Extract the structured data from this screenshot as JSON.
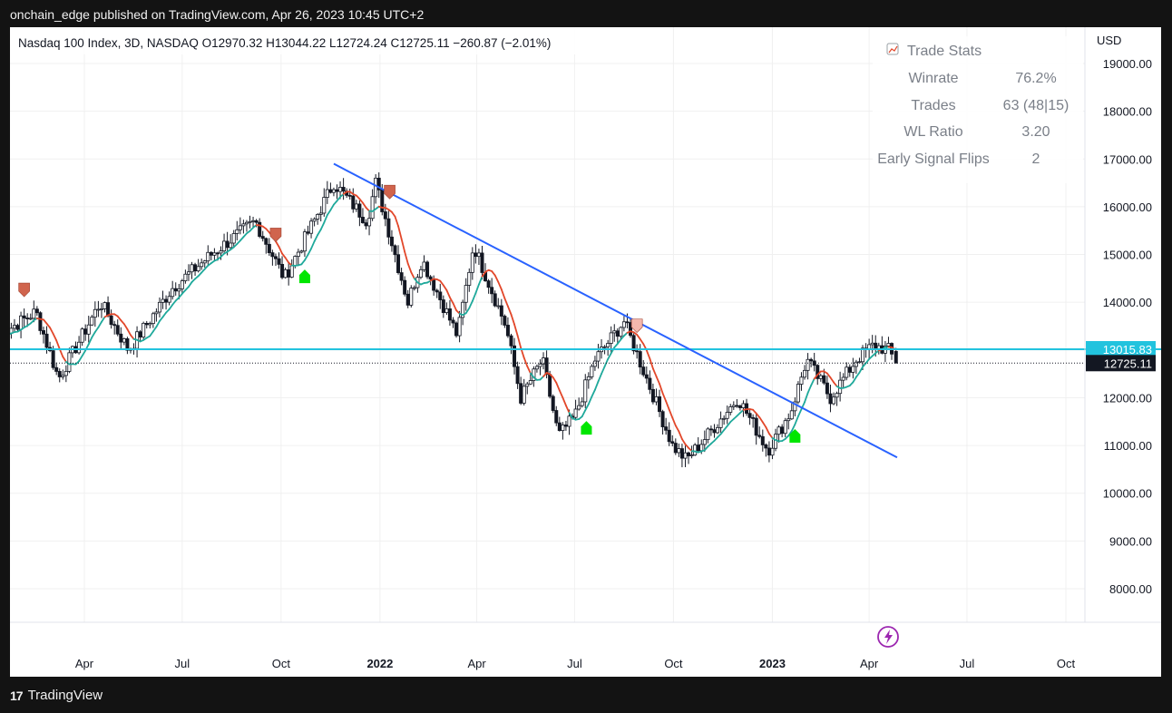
{
  "caption": "onchain_edge published on TradingView.com, Apr 26, 2023 10:45 UTC+2",
  "branding": {
    "logo_icon": "tradingview-logo-icon",
    "logo_text": "TradingView"
  },
  "chart_data": {
    "type": "candlestick",
    "legend_text": "Nasdaq 100 Index, 3D, NASDAQ  O12970.32  H13044.22  L12724.24  C12725.11  −260.87 (−2.01%)",
    "currency_label": "USD",
    "y_ticks": [
      "19000.00",
      "18000.00",
      "17000.00",
      "16000.00",
      "15000.00",
      "14000.00",
      "12000.00",
      "11000.00",
      "10000.00",
      "9000.00",
      "8000.00"
    ],
    "x_ticks": [
      {
        "label": "Apr",
        "date": "2021-04-01",
        "bold": false
      },
      {
        "label": "Jul",
        "date": "2021-07-01",
        "bold": false
      },
      {
        "label": "Oct",
        "date": "2021-10-01",
        "bold": false
      },
      {
        "label": "2022",
        "date": "2022-01-01",
        "bold": true
      },
      {
        "label": "Apr",
        "date": "2022-04-01",
        "bold": false
      },
      {
        "label": "Jul",
        "date": "2022-07-01",
        "bold": false
      },
      {
        "label": "Oct",
        "date": "2022-10-01",
        "bold": false
      },
      {
        "label": "2023",
        "date": "2023-01-01",
        "bold": true
      },
      {
        "label": "Apr",
        "date": "2023-04-01",
        "bold": false
      },
      {
        "label": "Jul",
        "date": "2023-07-01",
        "bold": false
      },
      {
        "label": "Oct",
        "date": "2023-10-01",
        "bold": false
      }
    ],
    "horizontal_level": {
      "value": 13015.83,
      "label": "13015.83",
      "color": "#22c3de"
    },
    "last_price": {
      "value": 12725.11,
      "label": "12725.11"
    },
    "trendline": {
      "start": {
        "date": "2021-11-19",
        "price": 16900
      },
      "end": {
        "date": "2023-04-27",
        "price": 10750
      },
      "color": "#2962ff"
    },
    "anchors": [
      {
        "date": "2021-01-11",
        "price": 13300
      },
      {
        "date": "2021-02-15",
        "price": 13800
      },
      {
        "date": "2021-03-08",
        "price": 12400
      },
      {
        "date": "2021-04-16",
        "price": 14000
      },
      {
        "date": "2021-05-12",
        "price": 13000
      },
      {
        "date": "2021-06-22",
        "price": 14300
      },
      {
        "date": "2021-07-28",
        "price": 15000
      },
      {
        "date": "2021-09-07",
        "price": 15700
      },
      {
        "date": "2021-10-04",
        "price": 14500
      },
      {
        "date": "2021-11-19",
        "price": 16500
      },
      {
        "date": "2021-12-20",
        "price": 15700
      },
      {
        "date": "2021-12-28",
        "price": 16500
      },
      {
        "date": "2022-01-27",
        "price": 14000
      },
      {
        "date": "2022-02-09",
        "price": 14900
      },
      {
        "date": "2022-03-14",
        "price": 13300
      },
      {
        "date": "2022-03-29",
        "price": 15200
      },
      {
        "date": "2022-04-28",
        "price": 13500
      },
      {
        "date": "2022-05-12",
        "price": 12000
      },
      {
        "date": "2022-06-01",
        "price": 12800
      },
      {
        "date": "2022-06-16",
        "price": 11200
      },
      {
        "date": "2022-07-01",
        "price": 11600
      },
      {
        "date": "2022-07-20",
        "price": 12800
      },
      {
        "date": "2022-08-16",
        "price": 13600
      },
      {
        "date": "2022-09-13",
        "price": 12000
      },
      {
        "date": "2022-09-30",
        "price": 11000
      },
      {
        "date": "2022-10-13",
        "price": 10700
      },
      {
        "date": "2022-11-01",
        "price": 11200
      },
      {
        "date": "2022-11-30",
        "price": 12000
      },
      {
        "date": "2022-12-28",
        "price": 10900
      },
      {
        "date": "2023-01-18",
        "price": 11700
      },
      {
        "date": "2023-02-02",
        "price": 12800
      },
      {
        "date": "2023-02-24",
        "price": 12000
      },
      {
        "date": "2023-03-20",
        "price": 12800
      },
      {
        "date": "2023-04-05",
        "price": 13100
      },
      {
        "date": "2023-04-19",
        "price": 13000
      },
      {
        "date": "2023-04-26",
        "price": 12725
      }
    ],
    "last_candle": {
      "open": 12970.32,
      "high": 13044.22,
      "low": 12724.24,
      "close": 12725.11
    },
    "signals": [
      {
        "date": "2021-02-04",
        "type": "sell",
        "color": "#d0644d"
      },
      {
        "date": "2021-09-26",
        "type": "sell",
        "color": "#d0644d"
      },
      {
        "date": "2021-10-23",
        "type": "buy",
        "color": "#00e600"
      },
      {
        "date": "2022-01-10",
        "type": "sell",
        "color": "#d0644d"
      },
      {
        "date": "2022-07-12",
        "type": "buy",
        "color": "#00e600"
      },
      {
        "date": "2022-08-28",
        "type": "sell",
        "color": "#f4b8ae"
      },
      {
        "date": "2023-01-22",
        "type": "buy",
        "color": "#00e600"
      }
    ],
    "ma_colors": {
      "bullish": "#1fa99b",
      "bearish": "#e2472a"
    },
    "trade_stats": {
      "icon": "chart-emoji-icon",
      "title": "Trade Stats",
      "rows": [
        {
          "label": "Winrate",
          "value": "76.2%"
        },
        {
          "label": "Trades",
          "value": "63 (48|15)"
        },
        {
          "label": "WL Ratio",
          "value": "3.20"
        },
        {
          "label": "Early Signal Flips",
          "value": "2"
        }
      ]
    },
    "alert_icon": "lightning-icon"
  }
}
